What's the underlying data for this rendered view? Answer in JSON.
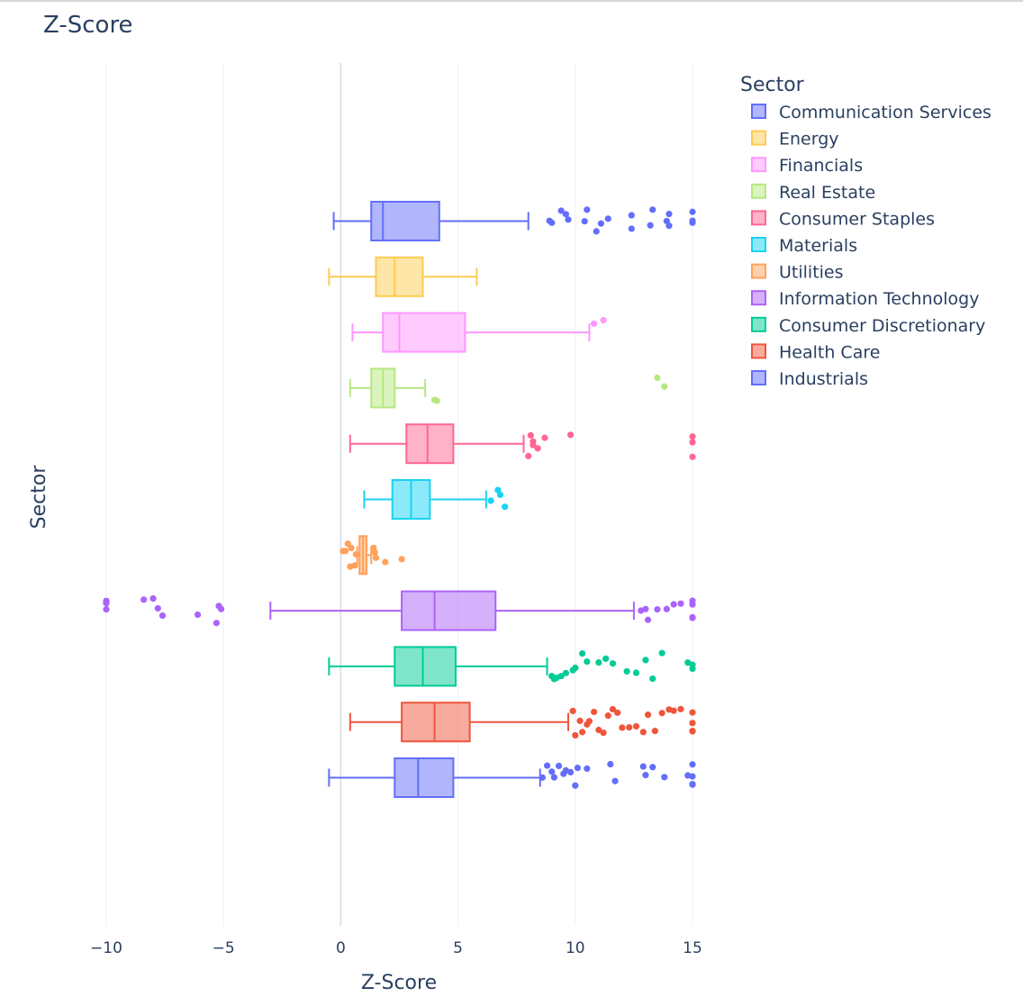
{
  "chart_data": {
    "type": "box",
    "orientation": "horizontal",
    "title": "Z-Score",
    "xlabel": "Z-Score",
    "ylabel": "Sector",
    "xlim": [
      -10,
      15
    ],
    "xticks": [
      -10,
      -5,
      0,
      5,
      10,
      15
    ],
    "xtick_labels": [
      "−10",
      "−5",
      "0",
      "5",
      "10",
      "15"
    ],
    "grid": true,
    "legend_title": "Sector",
    "legend_position": "top-right",
    "series": [
      {
        "name": "Communication Services",
        "color": "#636efa",
        "whisker_low": -0.3,
        "q1": 1.3,
        "median": 1.8,
        "q3": 4.2,
        "whisker_high": 8.0,
        "outliers": [
          8.9,
          9.0,
          9.4,
          9.6,
          9.7,
          10.4,
          10.5,
          10.9,
          11.1,
          11.4,
          12.4,
          12.4,
          13.2,
          13.3,
          13.9,
          14.0,
          14.0,
          15.0,
          15.0,
          15.0
        ]
      },
      {
        "name": "Energy",
        "color": "#FECB52",
        "whisker_low": -0.5,
        "q1": 1.5,
        "median": 2.3,
        "q3": 3.5,
        "whisker_high": 5.8,
        "outliers": []
      },
      {
        "name": "Financials",
        "color": "#FF97FF",
        "whisker_low": 0.5,
        "q1": 1.8,
        "median": 2.5,
        "q3": 5.3,
        "whisker_high": 10.6,
        "outliers": [
          10.8,
          11.2
        ]
      },
      {
        "name": "Real Estate",
        "color": "#B6E880",
        "whisker_low": 0.4,
        "q1": 1.3,
        "median": 1.8,
        "q3": 2.3,
        "whisker_high": 3.6,
        "outliers": [
          4.0,
          4.1,
          13.5,
          13.8
        ]
      },
      {
        "name": "Consumer Staples",
        "color": "#FF6692",
        "whisker_low": 0.4,
        "q1": 2.8,
        "median": 3.7,
        "q3": 4.8,
        "whisker_high": 7.8,
        "outliers": [
          8.0,
          8.1,
          8.2,
          8.2,
          8.4,
          8.7,
          9.8,
          15.0,
          15.0,
          15.0
        ]
      },
      {
        "name": "Materials",
        "color": "#19d3f3",
        "whisker_low": 1.0,
        "q1": 2.2,
        "median": 3.0,
        "q3": 3.8,
        "whisker_high": 6.2,
        "outliers": [
          6.4,
          6.8,
          6.7,
          7.0
        ]
      },
      {
        "name": "Utilities",
        "color": "#FFA15A",
        "whisker_low": 0.7,
        "q1": 0.8,
        "median": 0.95,
        "q3": 1.1,
        "whisker_high": 1.3,
        "outliers": [
          0.1,
          0.2,
          0.3,
          0.4,
          0.45,
          0.6,
          0.65,
          1.4,
          1.5,
          1.45,
          1.9,
          2.6
        ]
      },
      {
        "name": "Information Technology",
        "color": "#ab63fa",
        "whisker_low": -3.0,
        "q1": 2.6,
        "median": 4.0,
        "q3": 6.6,
        "whisker_high": 12.5,
        "outliers": [
          -10.0,
          -10.0,
          -10.0,
          -8.4,
          -8.0,
          -7.8,
          -7.6,
          -6.1,
          -5.3,
          -5.2,
          -5.1,
          12.8,
          13.0,
          13.1,
          13.5,
          13.9,
          14.2,
          14.5,
          15.0,
          15.0,
          15.0,
          15.0
        ]
      },
      {
        "name": "Consumer Discretionary",
        "color": "#00cc96",
        "whisker_low": -0.5,
        "q1": 2.3,
        "median": 3.5,
        "q3": 4.9,
        "whisker_high": 8.8,
        "outliers": [
          9.0,
          9.1,
          9.2,
          9.4,
          9.6,
          9.9,
          10.0,
          10.3,
          10.5,
          11.0,
          11.3,
          11.6,
          12.2,
          12.6,
          13.0,
          13.3,
          13.7,
          14.8,
          15.0,
          15.0
        ]
      },
      {
        "name": "Health Care",
        "color": "#EF553B",
        "whisker_low": 0.4,
        "q1": 2.6,
        "median": 4.0,
        "q3": 5.5,
        "whisker_high": 9.7,
        "outliers": [
          9.9,
          10.0,
          10.2,
          10.3,
          10.5,
          10.6,
          10.8,
          11.0,
          11.2,
          11.4,
          11.6,
          11.8,
          12.0,
          12.3,
          12.6,
          12.9,
          13.1,
          13.4,
          13.7,
          14.0,
          14.2,
          14.5,
          15.0,
          15.0,
          15.0,
          15.0
        ]
      },
      {
        "name": "Industrials",
        "color": "#636efa",
        "whisker_low": -0.5,
        "q1": 2.3,
        "median": 3.3,
        "q3": 4.8,
        "whisker_high": 8.5,
        "outliers": [
          8.6,
          8.8,
          9.0,
          9.1,
          9.3,
          9.5,
          9.6,
          9.8,
          10.0,
          10.1,
          10.5,
          11.5,
          11.7,
          12.9,
          13.0,
          13.3,
          13.8,
          14.8,
          15.0,
          15.0,
          15.0,
          15.0
        ]
      }
    ]
  }
}
